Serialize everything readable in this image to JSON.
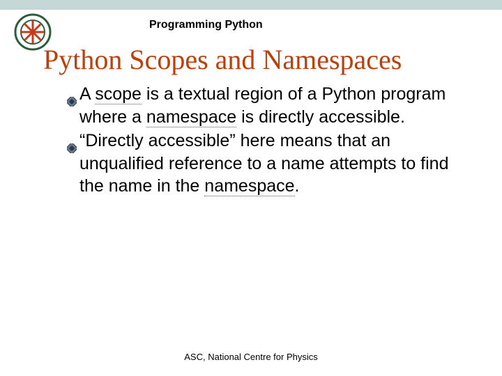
{
  "header": {
    "course_title": "Programming Python",
    "logo_colors": {
      "ring": "#2a5d3c",
      "spokes": "#c43a1b",
      "text": "#2a5d3c"
    }
  },
  "slide": {
    "title": "Python Scopes and Namespaces",
    "title_color": "#bd3f0a",
    "title_fontsize": 40
  },
  "bullet_style": {
    "fill": "#6a7b8c",
    "edge": "#2a3a4a",
    "size": 14
  },
  "bullets": [
    {
      "segments": [
        {
          "text": "A ",
          "dotted": false
        },
        {
          "text": "scope",
          "dotted": true
        },
        {
          "text": " is a textual region of a Python program where a ",
          "dotted": false
        },
        {
          "text": "namespace",
          "dotted": true
        },
        {
          "text": " is directly accessible.",
          "dotted": false
        }
      ]
    },
    {
      "segments": [
        {
          "text": "“Directly accessible” here means that an unqualified reference to a name attempts to find the name in the ",
          "dotted": false
        },
        {
          "text": "namespace",
          "dotted": true
        },
        {
          "text": ".",
          "dotted": false
        }
      ]
    }
  ],
  "footer": {
    "text": "ASC, National Centre for Physics"
  },
  "colors": {
    "top_band": "#c5d7d7",
    "background": "#ffffff",
    "body_text": "#000000"
  }
}
